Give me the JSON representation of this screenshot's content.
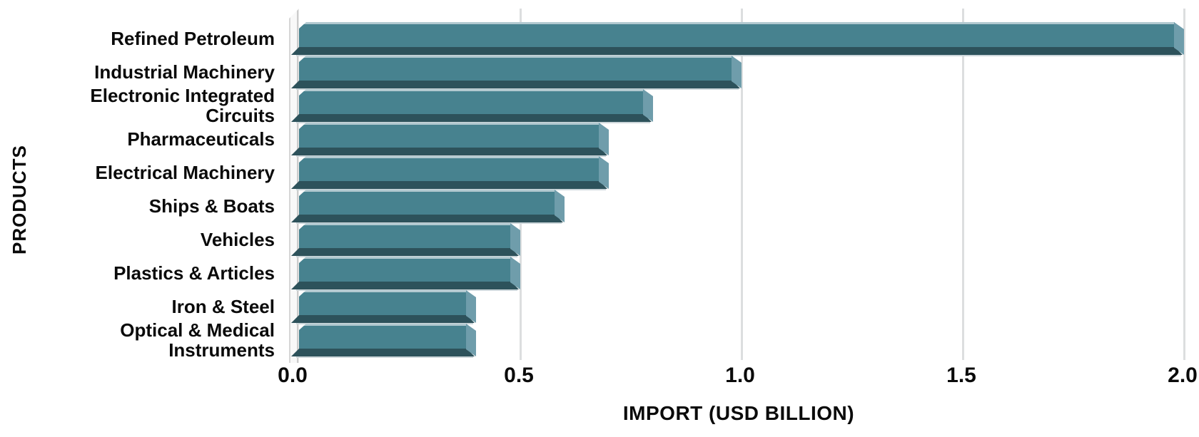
{
  "chart_data": {
    "type": "bar",
    "orientation": "horizontal",
    "title": "",
    "xlabel": "IMPORT (USD BILLION)",
    "ylabel": "PRODUCTS",
    "categories": [
      "Refined Petroleum",
      "Industrial Machinery",
      "Electronic Integrated Circuits",
      "Pharmaceuticals",
      "Electrical Machinery",
      "Ships & Boats",
      "Vehicles",
      "Plastics & Articles",
      "Iron & Steel",
      "Optical & Medical Instruments"
    ],
    "category_lines": [
      [
        "Refined Petroleum"
      ],
      [
        "Industrial Machinery"
      ],
      [
        "Electronic Integrated",
        "Circuits"
      ],
      [
        "Pharmaceuticals"
      ],
      [
        "Electrical Machinery"
      ],
      [
        "Ships & Boats"
      ],
      [
        "Vehicles"
      ],
      [
        "Plastics & Articles"
      ],
      [
        "Iron & Steel"
      ],
      [
        "Optical & Medical",
        "Instruments"
      ]
    ],
    "values": [
      2.0,
      1.0,
      0.8,
      0.7,
      0.7,
      0.6,
      0.5,
      0.5,
      0.4,
      0.4
    ],
    "xlim": [
      0.0,
      2.0
    ],
    "xticks": [
      "0.0",
      "0.5",
      "1.0",
      "1.5",
      "2.0"
    ],
    "xtick_values": [
      0.0,
      0.5,
      1.0,
      1.5,
      2.0
    ],
    "grid": true,
    "legend": false,
    "bar_style": "3d-bevel",
    "colors": {
      "bar_face": "#47828f",
      "bar_top_highlight": "#b2c9d0",
      "bar_bottom_shade": "#2d525b",
      "bar_end_cap": "#6f9dab",
      "gridline": "#dcdedf",
      "axis_band_fill": "#f8f8f8",
      "axis_band_edge": "#cccccc",
      "text": "#0a0a0a",
      "background": "#ffffff"
    }
  }
}
